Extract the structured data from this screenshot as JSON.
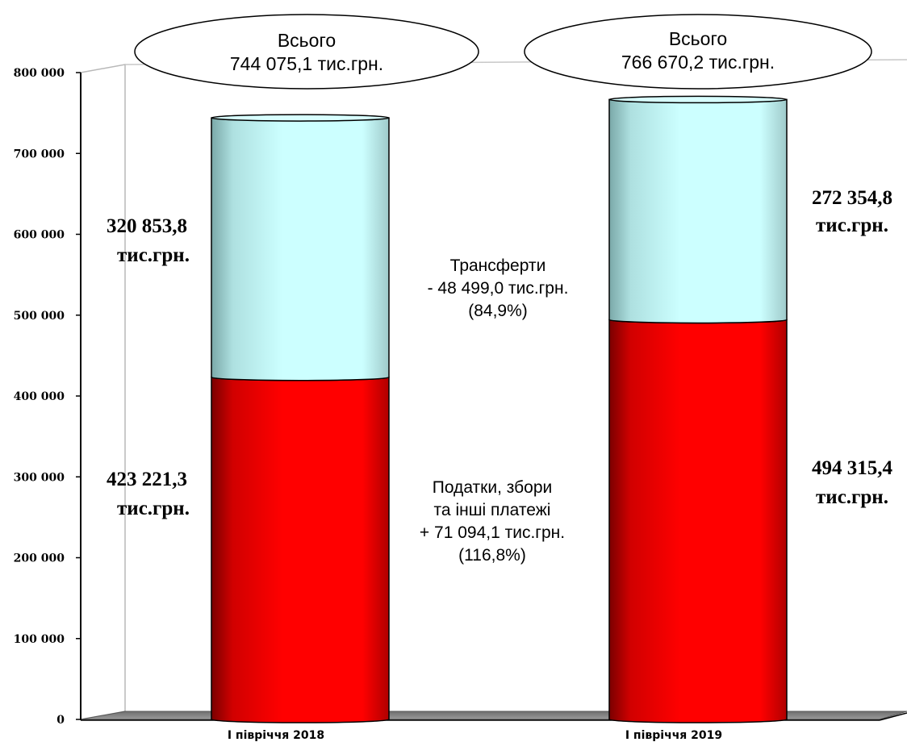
{
  "chart_data": {
    "type": "bar",
    "stacked": true,
    "categories": [
      "І півріччя 2018",
      "І півріччя 2019"
    ],
    "series": [
      {
        "values": [
          423221.3,
          494315.4
        ],
        "color": "#ff0000"
      },
      {
        "values": [
          320853.8,
          272354.8
        ],
        "color": "#ccffff"
      }
    ],
    "ylim": [
      0,
      800000
    ],
    "yticks": [
      "0",
      "100 000",
      "200 000",
      "300 000",
      "400 000",
      "500 000",
      "600 000",
      "700 000",
      "800 000"
    ],
    "data_labels": {
      "bottom": [
        [
          "423 221,3",
          "тис.грн."
        ],
        [
          "494 315,4",
          "тис.грн."
        ]
      ],
      "top": [
        [
          "320 853,8",
          "тис.грн."
        ],
        [
          "272 354,8",
          "тис.грн."
        ]
      ]
    },
    "totals": [
      [
        "Всього",
        "744 075,1 тис.грн."
      ],
      [
        "Всього",
        "766 670,2 тис.грн."
      ]
    ],
    "annotations": {
      "transfers": [
        "Трансферти",
        "- 48 499,0 тис.грн.",
        "(84,9%)"
      ],
      "taxes": [
        "Податки, збори",
        "та інші платежі",
        "+ 71 094,1 тис.грн.",
        "(116,8%)"
      ]
    },
    "grid": false
  }
}
